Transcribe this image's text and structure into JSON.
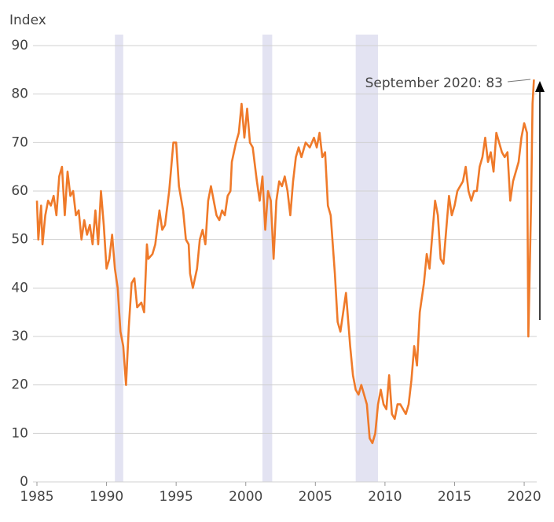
{
  "chart_data": {
    "type": "line",
    "ylabel": "Index",
    "annotation": "September 2020: 83",
    "color": "#ef7a2a",
    "recessions": [
      [
        1990.6,
        1991.2
      ],
      [
        2001.2,
        2001.9
      ],
      [
        2007.9,
        2009.5
      ]
    ],
    "xlim": [
      1985,
      2020.9
    ],
    "xticks": [
      1985,
      1990,
      1995,
      2000,
      2005,
      2010,
      2015,
      2020
    ],
    "ylim": [
      0,
      90
    ],
    "yticks": [
      0,
      10,
      20,
      30,
      40,
      50,
      60,
      70,
      80,
      90
    ],
    "grid": true,
    "x": [
      1985.0,
      1985.1,
      1985.3,
      1985.4,
      1985.6,
      1985.8,
      1986.0,
      1986.2,
      1986.4,
      1986.6,
      1986.8,
      1987.0,
      1987.2,
      1987.4,
      1987.6,
      1987.8,
      1988.0,
      1988.2,
      1988.4,
      1988.6,
      1988.8,
      1989.0,
      1989.2,
      1989.4,
      1989.6,
      1989.8,
      1990.0,
      1990.2,
      1990.4,
      1990.6,
      1990.8,
      1991.0,
      1991.2,
      1991.4,
      1991.6,
      1991.8,
      1992.0,
      1992.2,
      1992.5,
      1992.7,
      1992.9,
      1993.0,
      1993.3,
      1993.5,
      1993.8,
      1994.0,
      1994.2,
      1994.5,
      1994.8,
      1995.0,
      1995.2,
      1995.5,
      1995.7,
      1995.9,
      1996.0,
      1996.2,
      1996.5,
      1996.7,
      1996.9,
      1997.1,
      1997.3,
      1997.5,
      1997.7,
      1997.9,
      1998.1,
      1998.3,
      1998.5,
      1998.7,
      1998.9,
      1999.0,
      1999.3,
      1999.5,
      1999.7,
      1999.9,
      2000.1,
      2000.3,
      2000.5,
      2000.8,
      2001.0,
      2001.2,
      2001.4,
      2001.6,
      2001.8,
      2002.0,
      2002.2,
      2002.4,
      2002.6,
      2002.8,
      2003.0,
      2003.2,
      2003.4,
      2003.6,
      2003.8,
      2004.0,
      2004.3,
      2004.6,
      2004.9,
      2005.1,
      2005.3,
      2005.5,
      2005.7,
      2005.9,
      2006.1,
      2006.4,
      2006.6,
      2006.8,
      2007.0,
      2007.2,
      2007.5,
      2007.7,
      2007.9,
      2008.1,
      2008.3,
      2008.5,
      2008.7,
      2008.9,
      2009.1,
      2009.3,
      2009.5,
      2009.7,
      2009.9,
      2010.1,
      2010.3,
      2010.5,
      2010.7,
      2010.9,
      2011.1,
      2011.3,
      2011.5,
      2011.7,
      2011.9,
      2012.1,
      2012.3,
      2012.5,
      2012.8,
      2013.0,
      2013.2,
      2013.4,
      2013.6,
      2013.8,
      2014.0,
      2014.2,
      2014.4,
      2014.6,
      2014.8,
      2015.0,
      2015.2,
      2015.4,
      2015.6,
      2015.8,
      2016.0,
      2016.2,
      2016.4,
      2016.6,
      2016.8,
      2017.0,
      2017.2,
      2017.4,
      2017.6,
      2017.8,
      2018.0,
      2018.2,
      2018.4,
      2018.6,
      2018.8,
      2019.0,
      2019.2,
      2019.4,
      2019.6,
      2019.8,
      2020.0,
      2020.2,
      2020.3,
      2020.5,
      2020.6,
      2020.7
    ],
    "values": [
      58,
      50,
      57,
      49,
      55,
      58,
      57,
      59,
      55,
      63,
      65,
      55,
      64,
      59,
      60,
      55,
      56,
      50,
      54,
      51,
      53,
      49,
      56,
      49,
      60,
      53,
      44,
      46,
      51,
      44,
      40,
      31,
      28,
      20,
      32,
      41,
      42,
      36,
      37,
      35,
      49,
      46,
      47,
      49,
      56,
      52,
      53,
      60,
      70,
      70,
      61,
      56,
      50,
      49,
      43,
      40,
      44,
      50,
      52,
      49,
      58,
      61,
      58,
      55,
      54,
      56,
      55,
      59,
      60,
      66,
      70,
      72,
      78,
      71,
      77,
      70,
      69,
      62,
      58,
      63,
      52,
      60,
      58,
      46,
      58,
      62,
      61,
      63,
      60,
      55,
      62,
      67,
      69,
      67,
      70,
      69,
      71,
      69,
      72,
      67,
      68,
      57,
      55,
      43,
      33,
      31,
      35,
      39,
      28,
      22,
      19,
      18,
      20,
      18,
      16,
      9,
      8,
      10,
      16,
      19,
      16,
      15,
      22,
      14,
      13,
      16,
      16,
      15,
      14,
      16,
      21,
      28,
      24,
      35,
      41,
      47,
      44,
      51,
      58,
      55,
      46,
      45,
      52,
      59,
      55,
      57,
      60,
      61,
      62,
      65,
      60,
      58,
      60,
      60,
      65,
      67,
      71,
      66,
      68,
      64,
      72,
      70,
      68,
      67,
      68,
      58,
      62,
      64,
      66,
      71,
      74,
      72,
      30,
      58,
      78,
      83
    ]
  }
}
